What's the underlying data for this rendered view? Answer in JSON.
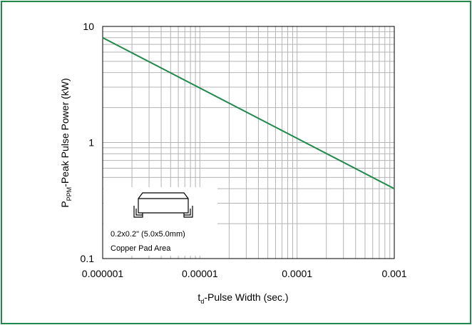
{
  "chart_data": {
    "type": "line",
    "x_scale": "log",
    "y_scale": "log",
    "xlim": [
      1e-06,
      0.001
    ],
    "ylim": [
      0.1,
      10
    ],
    "x_ticks": [
      "0.000001",
      "0.00001",
      "0.0001",
      "0.001"
    ],
    "y_ticks": [
      "10",
      "1",
      "0.1"
    ],
    "xlabel_main": "t",
    "xlabel_sub": "d",
    "xlabel_rest": "-Pulse Width (sec.)",
    "ylabel_main": "P",
    "ylabel_sub": "PPM",
    "ylabel_rest": "-Peak Pulse Power (kW)",
    "grid": true,
    "series": [
      {
        "x": [
          1e-06,
          0.001
        ],
        "y": [
          8.0,
          0.4
        ]
      }
    ],
    "annotation": {
      "line1": "0.2x0.2\" (5.0x5.0mm)",
      "line2": "Copper Pad Area",
      "icon": "smd-package-icon"
    },
    "colors": {
      "line": "#1f8a4c",
      "frame": "#1f8a4c",
      "grid": "#b4b4b4"
    }
  }
}
